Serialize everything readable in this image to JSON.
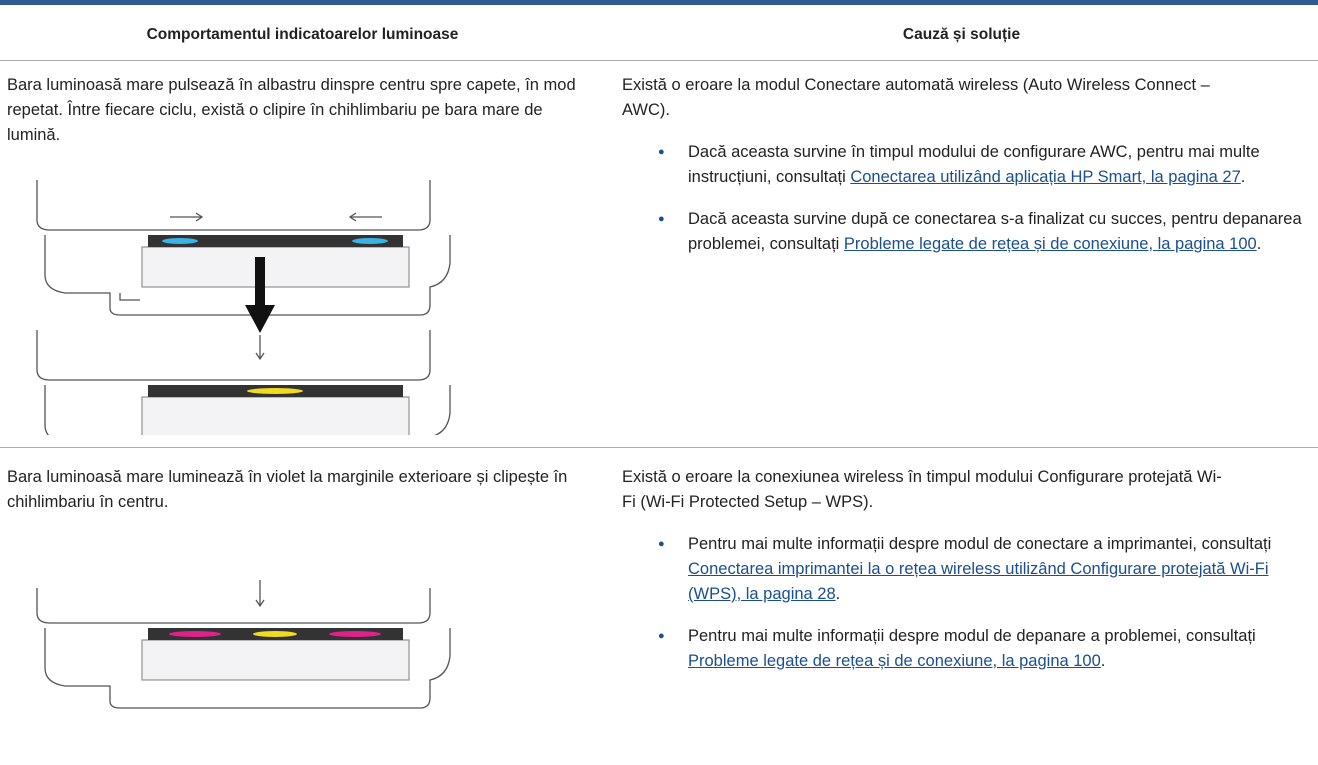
{
  "table": {
    "headers": [
      "Comportamentul indicatoarelor luminoase",
      "Cauză și soluție"
    ],
    "rows": [
      {
        "behavior": "Bara luminoasă mare pulsează în albastru dinspre centru spre capete, în mod repetat. Între fiecare ciclu, există o clipire în chihlimbariu pe bara mare de lumină.",
        "cause": "Există o eroare la modul Conectare automată wireless (Auto Wireless Connect – AWC).",
        "bullets": [
          {
            "text": "Dacă aceasta survine în timpul modului de configurare AWC, pentru mai multe instrucțiuni, consultați ",
            "link": "Conectarea utilizând aplicația HP Smart, la pagina 27",
            "end": "."
          },
          {
            "text": "Dacă aceasta survine după ce conectarea s-a finalizat cu succes, pentru depanarea problemei, consultați ",
            "link": "Probleme legate de rețea și de conexiune, la pagina 100",
            "end": "."
          }
        ]
      },
      {
        "behavior": "Bara luminoasă mare luminează în violet la marginile exterioare și clipește în chihlimbariu în centru.",
        "cause": "Există o eroare la conexiunea wireless în timpul modului Configurare protejată Wi-Fi (Wi-Fi Protected Setup – WPS).",
        "bullets": [
          {
            "text": "Pentru mai multe informații despre modul de conectare a imprimantei, consultați ",
            "link": "Conectarea imprimantei la o rețea wireless utilizând Configurare protejată Wi-Fi (WPS), la pagina 28",
            "end": "."
          },
          {
            "text": "Pentru mai multe informații despre modul de depanare a problemei, consultați ",
            "link": "Probleme legate de rețea și de conexiune, la pagina 100",
            "end": "."
          }
        ]
      }
    ]
  }
}
